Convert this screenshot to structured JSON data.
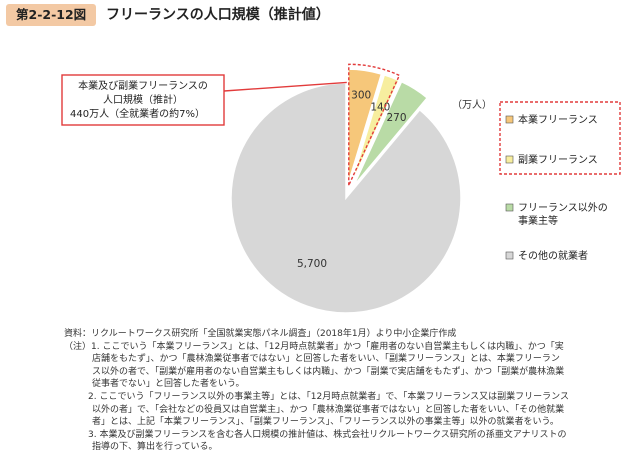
{
  "figure": {
    "label": "第2-2-12図",
    "title": "フリーランスの人口規模（推計値）"
  },
  "chart_data": {
    "type": "pie",
    "unit_label": "（万人）",
    "slices": [
      {
        "name": "本業フリーランス",
        "value": 300,
        "label": "300",
        "color": "#f6c77a"
      },
      {
        "name": "副業フリーランス",
        "value": 140,
        "label": "140",
        "color": "#f7ee9f"
      },
      {
        "name": "フリーランス以外の事業主等",
        "value": 270,
        "label": "270",
        "color": "#b9dba6"
      },
      {
        "name": "その他の就業者",
        "value": 5700,
        "label": "5,700",
        "color": "#d7d7d7"
      }
    ],
    "callout": {
      "lines": [
        "本業及び副業フリーランスの",
        "人口規模（推計）",
        "440万人（全就業者の約7%）"
      ]
    },
    "legend_position": "right",
    "highlight_color": "#e23b3b"
  },
  "notes": {
    "source": "資料：リクルートワークス研究所「全国就業実態パネル調査」（2018年1月）より中小企業庁作成",
    "note1": [
      "（注）1. ここでいう「本業フリーランス」とは、「12月時点就業者」かつ「雇用者のない自営業主もしくは内職」、かつ「実",
      "店舗をもたず」、かつ「農林漁業従事者ではない」と回答した者をいい、「副業フリーランス」とは、本業フリーラン",
      "ス以外の者で、「副業が雇用者のない自営業主もしくは内職」、かつ「副業で実店舗をもたず」、かつ「副業が農林漁業",
      "従事者でない」と回答した者をいう。"
    ],
    "note2": [
      "2. ここでいう「フリーランス以外の事業主等」とは、「12月時点就業者」で、「本業フリーランス又は副業フリーランス",
      "以外の者」で、「会社などの役員又は自営業主」、かつ「農林漁業従事者ではない」と回答した者をいい、「その他就業",
      "者」とは、上記「本業フリーランス」、「副業フリーランス」、「フリーランス以外の事業主等」以外の就業者をいう。"
    ],
    "note3": [
      "3. 本業及び副業フリーランスを含む各人口規模の推計値は、株式会社リクルートワークス研究所の孫亜文アナリストの",
      "指導の下、算出を行っている。"
    ]
  }
}
